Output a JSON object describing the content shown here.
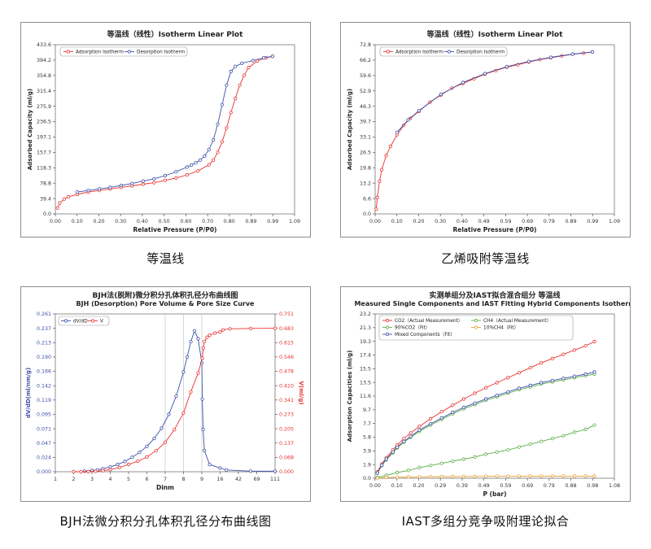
{
  "captions": [
    "等温线",
    "乙烯吸附等温线",
    "BJH法微分积分孔体积孔径分布曲线图",
    "IAST多组分竞争吸附理论拟合"
  ],
  "colors": {
    "red": "#e8322f",
    "blue": "#3b4fa8",
    "green": "#5cae45",
    "orange": "#e6a23a",
    "axis": "#555555"
  },
  "chart_data": [
    {
      "type": "line",
      "title": "等温线（线性）Isotherm Linear Plot",
      "xlabel": "Relative Pressure (P/P0)",
      "ylabel": "Adsorbed Capacity (ml/g)",
      "xlim": [
        0,
        1.09
      ],
      "ylim": [
        0,
        433.6
      ],
      "xticks": [
        "0.00",
        "0.10",
        "0.20",
        "0.30",
        "0.40",
        "0.50",
        "0.60",
        "0.70",
        "0.80",
        "0.89",
        "0.99",
        "1.09"
      ],
      "yticks": [
        "0.0",
        "39.4",
        "78.8",
        "118.3",
        "157.7",
        "197.1",
        "236.5",
        "275.9",
        "315.4",
        "354.8",
        "394.2",
        "433.6"
      ],
      "legend": [
        "Adsorption Isotherm",
        "Desorption Isotherm"
      ],
      "series": [
        {
          "name": "Adsorption Isotherm",
          "color": "red",
          "x": [
            0.01,
            0.02,
            0.04,
            0.06,
            0.1,
            0.15,
            0.2,
            0.25,
            0.3,
            0.35,
            0.4,
            0.45,
            0.5,
            0.55,
            0.6,
            0.65,
            0.7,
            0.72,
            0.74,
            0.76,
            0.78,
            0.8,
            0.82,
            0.84,
            0.86,
            0.88,
            0.92,
            0.96,
            0.99
          ],
          "y": [
            15,
            28,
            38,
            44,
            50,
            56,
            60,
            64,
            68,
            72,
            76,
            80,
            86,
            92,
            100,
            110,
            126,
            138,
            158,
            185,
            220,
            260,
            296,
            330,
            355,
            375,
            392,
            400,
            404
          ]
        },
        {
          "name": "Desorption Isotherm",
          "color": "blue",
          "x": [
            0.99,
            0.95,
            0.9,
            0.85,
            0.82,
            0.8,
            0.78,
            0.76,
            0.74,
            0.72,
            0.7,
            0.68,
            0.66,
            0.64,
            0.62,
            0.6,
            0.55,
            0.5,
            0.45,
            0.4,
            0.35,
            0.3,
            0.25,
            0.2,
            0.15,
            0.1
          ],
          "y": [
            404,
            400,
            393,
            386,
            378,
            365,
            330,
            280,
            230,
            190,
            165,
            148,
            138,
            131,
            125,
            120,
            108,
            98,
            90,
            84,
            78,
            73,
            68,
            64,
            60,
            56
          ]
        }
      ]
    },
    {
      "type": "line",
      "title": "等温线（线性）Isotherm Linear Plot",
      "xlabel": "Relative Pressure (P/P0)",
      "ylabel": "Adsorbed Capacity (ml/g)",
      "xlim": [
        0,
        1.09
      ],
      "ylim": [
        0,
        72.6
      ],
      "xticks": [
        "0.00",
        "0.10",
        "0.20",
        "0.30",
        "0.40",
        "0.49",
        "0.59",
        "0.69",
        "0.79",
        "0.89",
        "0.99",
        "1.09"
      ],
      "yticks": [
        "0.0",
        "6.6",
        "13.2",
        "19.8",
        "26.5",
        "33.1",
        "39.7",
        "46.3",
        "52.9",
        "59.6",
        "66.2",
        "72.8"
      ],
      "legend": [
        "Adsorption Isotherm",
        "Desorption Isotherm"
      ],
      "series": [
        {
          "name": "Adsorption Isotherm",
          "color": "red",
          "x": [
            0.005,
            0.01,
            0.02,
            0.03,
            0.05,
            0.07,
            0.1,
            0.13,
            0.16,
            0.2,
            0.25,
            0.3,
            0.35,
            0.4,
            0.45,
            0.5,
            0.55,
            0.6,
            0.65,
            0.7,
            0.75,
            0.8,
            0.85,
            0.9,
            0.95,
            0.99
          ],
          "y": [
            2,
            7,
            14,
            19,
            25,
            29,
            34,
            38,
            41,
            44,
            48,
            51,
            54,
            56,
            58,
            60,
            61.5,
            63,
            64,
            65.2,
            66.2,
            67,
            67.8,
            68.5,
            69,
            69.5
          ]
        },
        {
          "name": "Desorption Isotherm",
          "color": "blue",
          "x": [
            0.99,
            0.9,
            0.8,
            0.7,
            0.6,
            0.5,
            0.4,
            0.3,
            0.2,
            0.15,
            0.1
          ],
          "y": [
            69.5,
            68.6,
            67.2,
            65.4,
            63.2,
            60.2,
            56.4,
            51.3,
            44.3,
            40.3,
            35
          ]
        }
      ]
    },
    {
      "type": "line",
      "title": "BJH法(脱附)微分积分孔体积孔径分布曲线图",
      "subtitle": "BJH (Desorption) Pore Volume & Pore Size Curve",
      "xlabel": "Dinm",
      "ylabel": "dV/dD(ml/nm/g)",
      "y2label": "V(ml/g)",
      "xticks": [
        "1",
        "2",
        "3",
        "4",
        "5",
        "6",
        "7",
        "8",
        "9",
        "16",
        "42",
        "69",
        "111"
      ],
      "yticks": [
        "0.000",
        "0.024",
        "0.047",
        "0.071",
        "0.095",
        "0.119",
        "0.142",
        "0.166",
        "0.190",
        "0.213",
        "0.237",
        "0.261"
      ],
      "y2ticks": [
        "0.000",
        "0.068",
        "0.137",
        "0.205",
        "0.273",
        "0.341",
        "0.410",
        "0.478",
        "0.546",
        "0.615",
        "0.683",
        "0.751"
      ],
      "ylim": [
        0,
        0.261
      ],
      "y2lim": [
        0,
        0.751
      ],
      "legend": [
        "dV/dD",
        "V"
      ],
      "series": [
        {
          "name": "dV/dD",
          "color": "blue",
          "axis": "left",
          "x": [
            2.6,
            3,
            3.3,
            3.6,
            4,
            4.4,
            4.8,
            5.2,
            5.6,
            6,
            6.4,
            6.8,
            7.2,
            7.6,
            8,
            8.2,
            8.4,
            8.6,
            8.8,
            9,
            9.2,
            9.5,
            10,
            12,
            16,
            25,
            60,
            111
          ],
          "y": [
            0.001,
            0.002,
            0.003,
            0.005,
            0.008,
            0.012,
            0.017,
            0.024,
            0.032,
            0.042,
            0.055,
            0.072,
            0.095,
            0.125,
            0.165,
            0.19,
            0.215,
            0.233,
            0.22,
            0.18,
            0.12,
            0.07,
            0.035,
            0.012,
            0.006,
            0.003,
            0.001,
            0.001
          ]
        },
        {
          "name": "V",
          "color": "red",
          "axis": "right",
          "x": [
            2,
            2.4,
            2.8,
            3.2,
            3.6,
            4,
            4.5,
            5,
            5.5,
            6,
            6.5,
            7,
            7.5,
            8,
            8.4,
            8.8,
            9.2,
            9.6,
            10,
            11,
            12,
            14,
            16,
            20,
            30,
            60,
            111
          ],
          "y": [
            0,
            0,
            0,
            0.002,
            0.005,
            0.01,
            0.02,
            0.035,
            0.05,
            0.07,
            0.1,
            0.14,
            0.2,
            0.28,
            0.38,
            0.47,
            0.54,
            0.59,
            0.62,
            0.64,
            0.65,
            0.66,
            0.665,
            0.675,
            0.68,
            0.682,
            0.683
          ]
        }
      ]
    },
    {
      "type": "line",
      "title": "实测单组分及IAST拟合混合组分 等温线",
      "subtitle": "Measured Single Components and IAST Fitting Hybrid Components Isotherm",
      "xlabel": "P (bar)",
      "ylabel": "Adsorption Capacities (ml/g)",
      "xlim": [
        0,
        1.08
      ],
      "ylim": [
        0,
        23.2
      ],
      "xticks": [
        "0.00",
        "0.10",
        "0.20",
        "0.29",
        "0.39",
        "0.49",
        "0.59",
        "0.69",
        "0.79",
        "0.88",
        "0.98",
        "1.08"
      ],
      "yticks": [
        "0.0",
        "1.9",
        "3.9",
        "5.8",
        "7.7",
        "9.7",
        "11.6",
        "13.5",
        "15.5",
        "17.4",
        "19.3",
        "21.3",
        "23.2"
      ],
      "legend": [
        "CO2（Actual Measurement）",
        "CH4（Actual Measurement）",
        "90%CO2（Fit）",
        "10%CH4（Fit）",
        "Mixed Components（Fit）"
      ],
      "series": [
        {
          "name": "CO2（Actual Measurement）",
          "color": "red",
          "x": [
            0.01,
            0.03,
            0.05,
            0.08,
            0.1,
            0.13,
            0.16,
            0.2,
            0.25,
            0.3,
            0.35,
            0.4,
            0.45,
            0.5,
            0.55,
            0.6,
            0.65,
            0.7,
            0.75,
            0.8,
            0.85,
            0.9,
            0.95,
            0.99
          ],
          "y": [
            0.9,
            2,
            2.9,
            4,
            4.7,
            5.6,
            6.4,
            7.3,
            8.4,
            9.4,
            10.3,
            11.2,
            12,
            12.8,
            13.5,
            14.2,
            14.9,
            15.6,
            16.3,
            16.9,
            17.5,
            18.1,
            18.7,
            19.3
          ]
        },
        {
          "name": "CH4（Actual Measurement）",
          "color": "green",
          "x": [
            0.01,
            0.05,
            0.1,
            0.15,
            0.2,
            0.25,
            0.3,
            0.35,
            0.4,
            0.45,
            0.5,
            0.55,
            0.6,
            0.65,
            0.7,
            0.75,
            0.8,
            0.85,
            0.9,
            0.95,
            0.99
          ],
          "y": [
            0.1,
            0.4,
            0.8,
            1.1,
            1.5,
            1.8,
            2.1,
            2.4,
            2.7,
            3,
            3.4,
            3.7,
            4,
            4.4,
            4.8,
            5.2,
            5.6,
            6,
            6.5,
            6.9,
            7.5
          ]
        },
        {
          "name": "90%CO2（Fit）",
          "color": "green",
          "x": [
            0.01,
            0.03,
            0.05,
            0.08,
            0.1,
            0.13,
            0.16,
            0.2,
            0.25,
            0.3,
            0.35,
            0.4,
            0.45,
            0.5,
            0.55,
            0.6,
            0.65,
            0.7,
            0.75,
            0.8,
            0.85,
            0.9,
            0.95,
            0.99
          ],
          "y": [
            0.7,
            1.8,
            2.6,
            3.6,
            4.3,
            5.1,
            5.8,
            6.6,
            7.5,
            8.3,
            9.1,
            9.8,
            10.4,
            11,
            11.5,
            12,
            12.5,
            12.9,
            13.3,
            13.6,
            13.9,
            14.2,
            14.5,
            14.7
          ]
        },
        {
          "name": "10%CH4（Fit）",
          "color": "orange",
          "x": [
            0.01,
            0.05,
            0.1,
            0.15,
            0.2,
            0.25,
            0.3,
            0.35,
            0.4,
            0.45,
            0.5,
            0.55,
            0.6,
            0.65,
            0.7,
            0.75,
            0.8,
            0.85,
            0.9,
            0.95,
            0.99
          ],
          "y": [
            0.02,
            0.1,
            0.15,
            0.18,
            0.2,
            0.22,
            0.23,
            0.24,
            0.25,
            0.26,
            0.27,
            0.27,
            0.28,
            0.28,
            0.29,
            0.29,
            0.29,
            0.3,
            0.3,
            0.3,
            0.3
          ]
        },
        {
          "name": "Mixed Components（Fit）",
          "color": "blue",
          "x": [
            0.01,
            0.03,
            0.05,
            0.08,
            0.1,
            0.13,
            0.16,
            0.2,
            0.25,
            0.3,
            0.35,
            0.4,
            0.45,
            0.5,
            0.55,
            0.6,
            0.65,
            0.7,
            0.75,
            0.8,
            0.85,
            0.9,
            0.95,
            0.99
          ],
          "y": [
            0.72,
            1.85,
            2.7,
            3.7,
            4.4,
            5.2,
            5.9,
            6.8,
            7.7,
            8.5,
            9.3,
            10,
            10.6,
            11.2,
            11.7,
            12.2,
            12.7,
            13.1,
            13.5,
            13.8,
            14.1,
            14.4,
            14.7,
            15
          ]
        }
      ]
    }
  ]
}
